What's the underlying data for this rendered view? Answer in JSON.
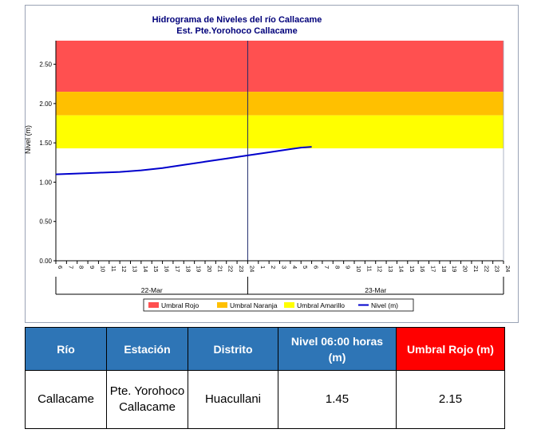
{
  "chart_data": {
    "type": "line",
    "title": "Hidrograma de Niveles del río Callacame",
    "subtitle": "Est. Pte.Yorohoco Callacame",
    "ylabel": "Nivel (m)",
    "ylim": [
      0,
      2.8
    ],
    "yticks": [
      "0.00",
      "0.50",
      "1.00",
      "1.50",
      "2.00",
      "2.50"
    ],
    "xlim": [
      6,
      48
    ],
    "hour_ticks": [
      "6",
      "7",
      "8",
      "9",
      "10",
      "11",
      "12",
      "13",
      "14",
      "15",
      "16",
      "17",
      "18",
      "19",
      "20",
      "21",
      "22",
      "23",
      "24",
      "1",
      "2",
      "3",
      "4",
      "5",
      "6",
      "7",
      "8",
      "9",
      "10",
      "11",
      "12",
      "13",
      "14",
      "15",
      "16",
      "17",
      "18",
      "19",
      "20",
      "21",
      "22",
      "23",
      "24"
    ],
    "date_labels": [
      "22-Mar",
      "23-Mar"
    ],
    "day_boundary_x": 24,
    "bands": [
      {
        "name": "Umbral Rojo",
        "from": 2.15,
        "to": 2.8,
        "color": "#ff5050"
      },
      {
        "name": "Umbral Naranja",
        "from": 1.85,
        "to": 2.15,
        "color": "#ffc000"
      },
      {
        "name": "Umbral Amarillo",
        "from": 1.43,
        "to": 1.85,
        "color": "#ffff00"
      }
    ],
    "series": [
      {
        "name": "Nivel (m)",
        "color": "#0000cc",
        "x": [
          6,
          8,
          10,
          12,
          14,
          16,
          18,
          20,
          22,
          24,
          26,
          27,
          28,
          29,
          30
        ],
        "y": [
          1.1,
          1.11,
          1.12,
          1.13,
          1.15,
          1.18,
          1.22,
          1.26,
          1.3,
          1.34,
          1.38,
          1.4,
          1.42,
          1.44,
          1.45
        ]
      }
    ],
    "legend_position": "bottom",
    "grid": false
  },
  "table": {
    "headers": [
      "Río",
      "Estación",
      "Distrito",
      "Nivel 06:00 horas (m)",
      "Umbral Rojo (m)"
    ],
    "row": [
      "Callacame",
      "Pte. Yorohoco Callacame",
      "Huacullani",
      "1.45",
      "2.15"
    ]
  }
}
